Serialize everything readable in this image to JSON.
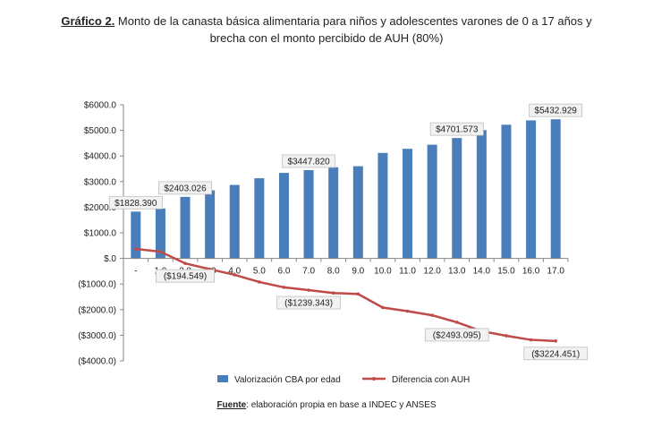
{
  "title": {
    "lead": "Gráfico 2.",
    "line1": " Monto de la canasta básica alimentaria para niños y adolescentes varones de 0 a 17 años y",
    "line2": "brecha con el monto percibido de AUH (80%)"
  },
  "source": {
    "lead": "Fuente",
    "text": ": elaboración propia en base a INDEC y ANSES"
  },
  "colors": {
    "bar": "#4a7ebb",
    "line": "#be4b48",
    "axis": "#868686",
    "label_border": "#bfbfbf"
  },
  "chart_data": {
    "type": "bar+line",
    "categories": [
      "-",
      "1.0",
      "2.0",
      "3.0",
      "4.0",
      "5.0",
      "6.0",
      "7.0",
      "8.0",
      "9.0",
      "10.0",
      "11.0",
      "12.0",
      "13.0",
      "14.0",
      "15.0",
      "16.0",
      "17.0"
    ],
    "ylim": [
      -4000,
      6000
    ],
    "yticks": [
      {
        "value": 6000,
        "label": "$6000.0"
      },
      {
        "value": 5000,
        "label": "$5000.0"
      },
      {
        "value": 4000,
        "label": "$4000.0"
      },
      {
        "value": 3000,
        "label": "$3000.0"
      },
      {
        "value": 2000,
        "label": "$2000.0"
      },
      {
        "value": 1000,
        "label": "$1000.0"
      },
      {
        "value": 0,
        "label": "$.0"
      },
      {
        "value": -1000,
        "label": "($1000.0)"
      },
      {
        "value": -2000,
        "label": "($2000.0)"
      },
      {
        "value": -3000,
        "label": "($3000.0)"
      },
      {
        "value": -4000,
        "label": "($4000.0)"
      }
    ],
    "series": [
      {
        "name": "Valorización CBA por edad",
        "kind": "bar",
        "values": [
          1828.39,
          1950,
          2403.026,
          2660,
          2870,
          3130,
          3340,
          3447.82,
          3560,
          3600,
          4120,
          4280,
          4440,
          4701.573,
          5010,
          5220,
          5390,
          5432.929
        ]
      },
      {
        "name": "Diferencia con AUH",
        "kind": "line",
        "values": [
          370,
          260,
          -194.549,
          -420,
          -640,
          -920,
          -1130,
          -1239.343,
          -1350,
          -1390,
          -1920,
          -2060,
          -2220,
          -2493.095,
          -2840,
          -3020,
          -3180,
          -3224.451
        ]
      }
    ],
    "data_labels": [
      {
        "series": 0,
        "index": 0,
        "text": "$1828.390"
      },
      {
        "series": 0,
        "index": 2,
        "text": "$2403.026"
      },
      {
        "series": 0,
        "index": 7,
        "text": "$3447.820"
      },
      {
        "series": 0,
        "index": 13,
        "text": "$4701.573"
      },
      {
        "series": 0,
        "index": 17,
        "text": "$5432.929"
      },
      {
        "series": 1,
        "index": 2,
        "text": "($194.549)"
      },
      {
        "series": 1,
        "index": 7,
        "text": "($1239.343)"
      },
      {
        "series": 1,
        "index": 13,
        "text": "($2493.095)"
      },
      {
        "series": 1,
        "index": 17,
        "text": "($3224.451)"
      }
    ],
    "legend_position": "bottom",
    "grid": false
  }
}
